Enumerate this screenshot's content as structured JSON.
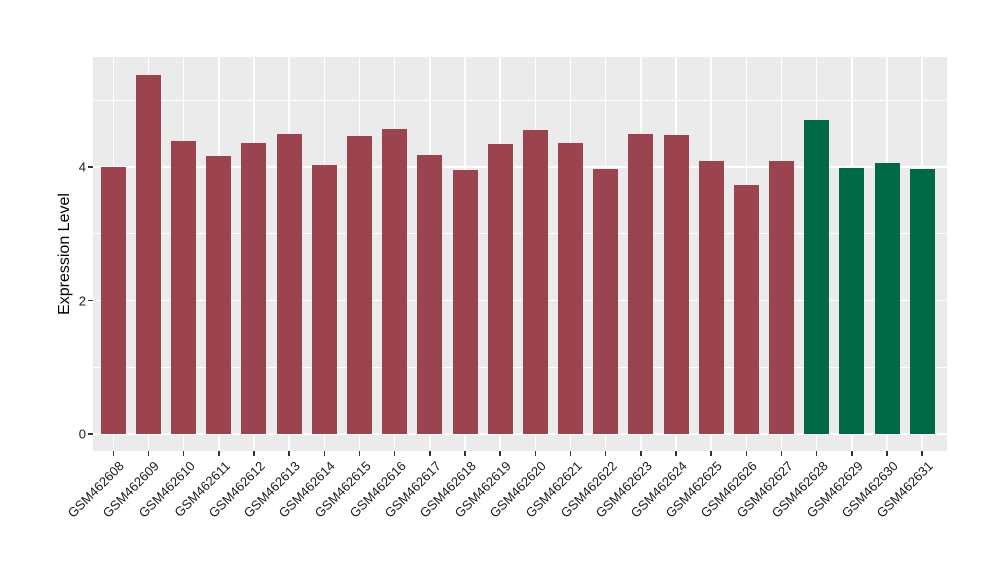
{
  "chart_data": {
    "type": "bar",
    "title": "",
    "xlabel": "",
    "ylabel": "Expression Level",
    "categories": [
      "GSM462608",
      "GSM462609",
      "GSM462610",
      "GSM462611",
      "GSM462612",
      "GSM462613",
      "GSM462614",
      "GSM462615",
      "GSM462616",
      "GSM462617",
      "GSM462618",
      "GSM462619",
      "GSM462620",
      "GSM462621",
      "GSM462622",
      "GSM462623",
      "GSM462624",
      "GSM462625",
      "GSM462626",
      "GSM462627",
      "GSM462628",
      "GSM462629",
      "GSM462630",
      "GSM462631"
    ],
    "values": [
      4.0,
      5.38,
      4.39,
      4.17,
      4.36,
      4.49,
      4.03,
      4.46,
      4.57,
      4.18,
      3.96,
      4.34,
      4.56,
      4.36,
      3.97,
      4.49,
      4.48,
      4.09,
      3.73,
      4.09,
      4.7,
      3.98,
      4.06,
      3.97
    ],
    "bar_colors": [
      "#9C4350",
      "#9C4350",
      "#9C4350",
      "#9C4350",
      "#9C4350",
      "#9C4350",
      "#9C4350",
      "#9C4350",
      "#9C4350",
      "#9C4350",
      "#9C4350",
      "#9C4350",
      "#9C4350",
      "#9C4350",
      "#9C4350",
      "#9C4350",
      "#9C4350",
      "#9C4350",
      "#9C4350",
      "#9C4350",
      "#006946",
      "#006946",
      "#006946",
      "#006946"
    ],
    "yticks": [
      "0",
      "2",
      "4"
    ],
    "ytick_values": [
      0,
      2,
      4
    ],
    "minor_ytick_values": [
      1,
      3,
      5
    ],
    "ylim": [
      -0.27,
      5.65
    ],
    "grid": true,
    "legend_position": "none",
    "panel_background": "#EBEBEB",
    "grid_color": "#FFFFFF",
    "tick_mark_color": "#333333",
    "tick_label_color": "#1A1A1A",
    "x_tick_angle": 45
  }
}
